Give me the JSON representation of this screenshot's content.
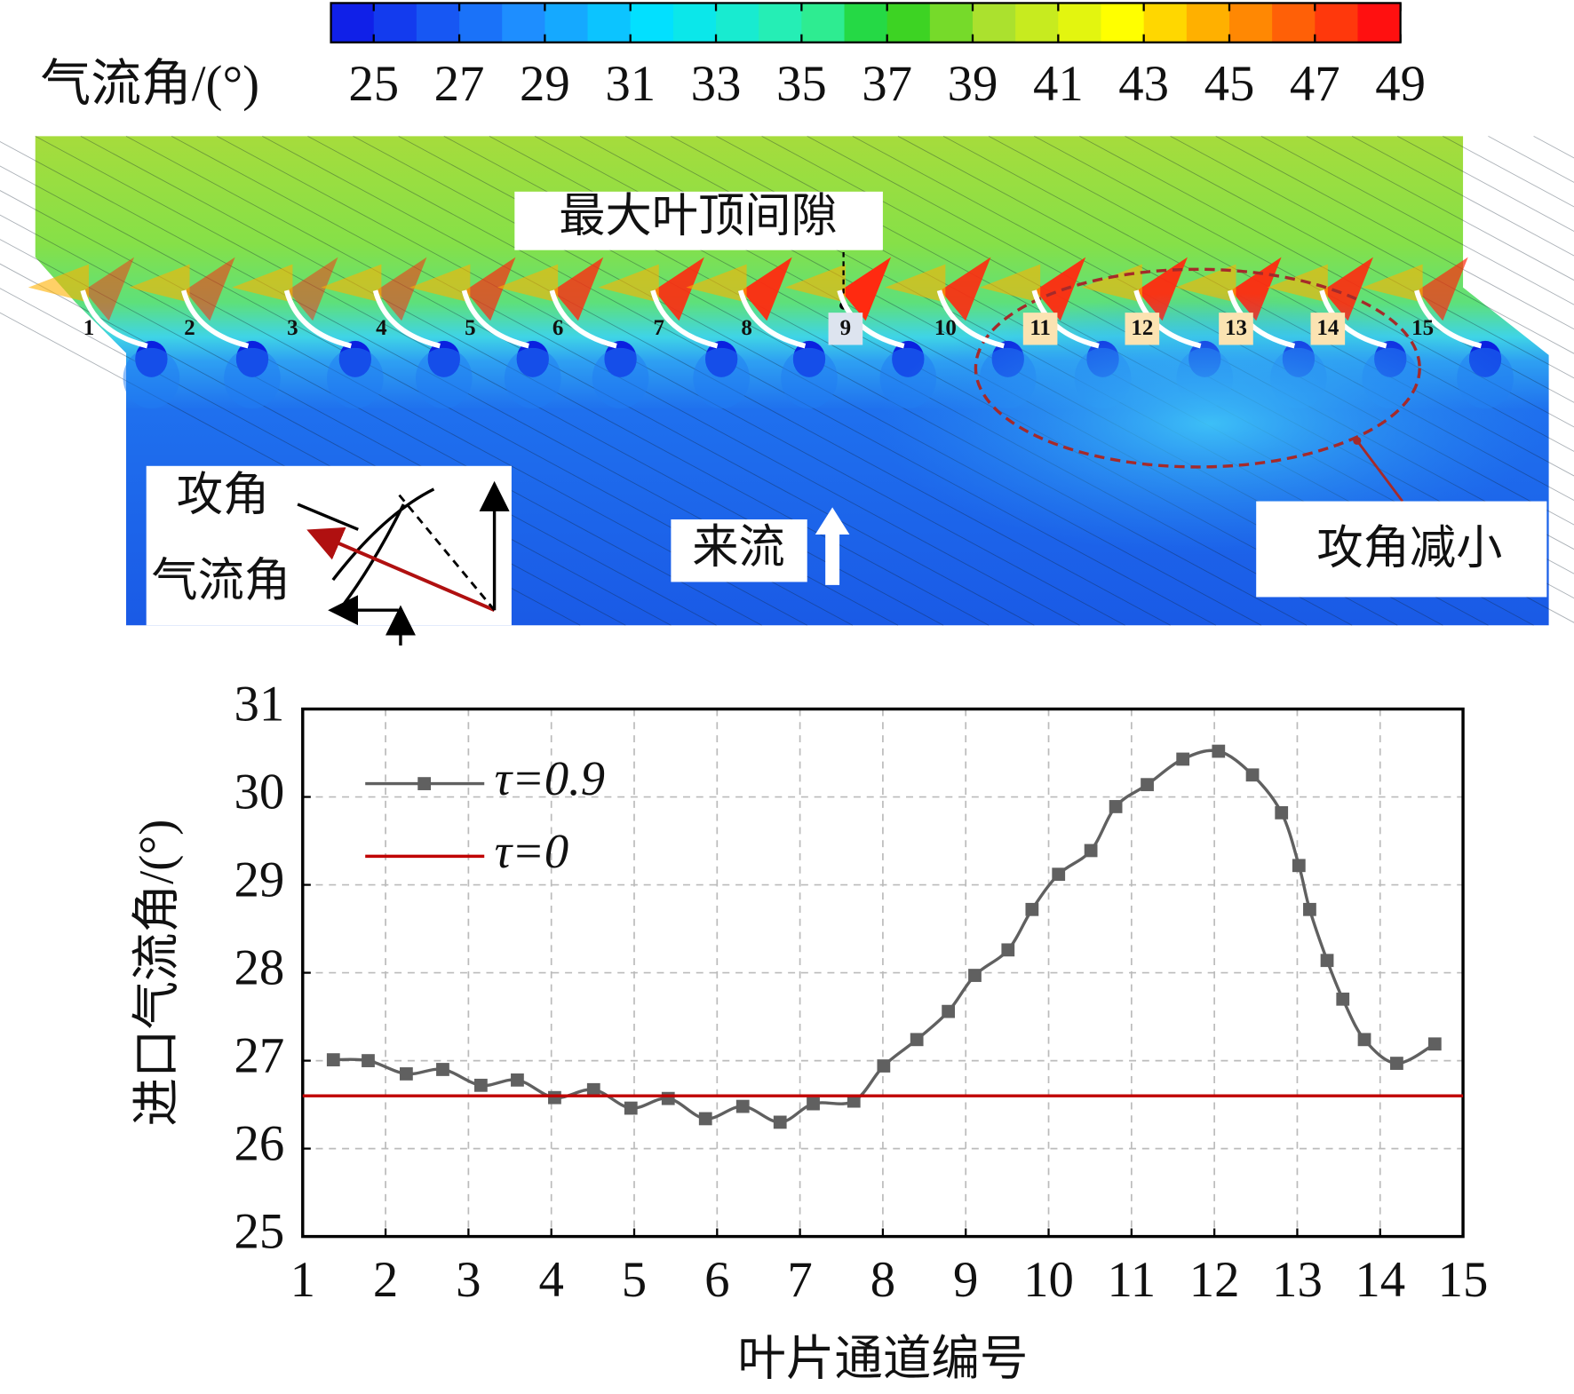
{
  "colorbar": {
    "label": "气流角/(°)",
    "lim": [
      24,
      49
    ],
    "ticks": [
      25,
      27,
      29,
      31,
      33,
      35,
      37,
      39,
      41,
      43,
      45,
      47,
      49
    ]
  },
  "contour": {
    "blade_numbers": [
      "1",
      "2",
      "3",
      "4",
      "5",
      "6",
      "7",
      "8",
      "9",
      "10",
      "11",
      "12",
      "13",
      "14",
      "15"
    ],
    "annotations": {
      "max_tip_clearance": "最大叶顶间隙",
      "incidence_decrease": "攻角减小",
      "inflow": "来流"
    },
    "inset": {
      "incidence": "攻角",
      "flow_angle": "气流角"
    }
  },
  "chart_data": {
    "type": "line",
    "xlabel": "叶片通道编号",
    "ylabel": "进口气流角/(°)",
    "xlim": [
      1,
      15
    ],
    "ylim": [
      25,
      31
    ],
    "xticks": [
      1,
      2,
      3,
      4,
      5,
      6,
      7,
      8,
      9,
      10,
      11,
      12,
      13,
      14,
      15
    ],
    "yticks": [
      25,
      26,
      27,
      28,
      29,
      30,
      31
    ],
    "grid": true,
    "legend": "upper left",
    "series": [
      {
        "name": "τ=0.9",
        "color": "#606060",
        "marker": "square",
        "x": [
          1.37,
          1.79,
          2.25,
          2.69,
          3.15,
          3.59,
          4.04,
          4.51,
          4.96,
          5.41,
          5.86,
          6.31,
          6.76,
          7.16,
          7.65,
          8.01,
          8.41,
          8.79,
          9.11,
          9.51,
          9.8,
          10.12,
          10.51,
          10.81,
          11.19,
          11.62,
          12.05,
          12.46,
          12.81,
          13.02,
          13.15,
          13.36,
          13.55,
          13.81,
          14.2,
          14.66
        ],
        "values": [
          27.01,
          27.0,
          26.85,
          26.9,
          26.72,
          26.78,
          26.58,
          26.67,
          26.46,
          26.57,
          26.34,
          26.48,
          26.3,
          26.51,
          26.54,
          26.94,
          27.24,
          27.56,
          27.97,
          28.26,
          28.72,
          29.12,
          29.39,
          29.89,
          30.14,
          30.43,
          30.52,
          30.25,
          29.82,
          29.22,
          28.72,
          28.14,
          27.7,
          27.24,
          26.97,
          27.19
        ]
      },
      {
        "name": "τ=0",
        "color": "#c00000",
        "x": [
          1,
          15
        ],
        "values": [
          26.6,
          26.6
        ]
      }
    ]
  }
}
